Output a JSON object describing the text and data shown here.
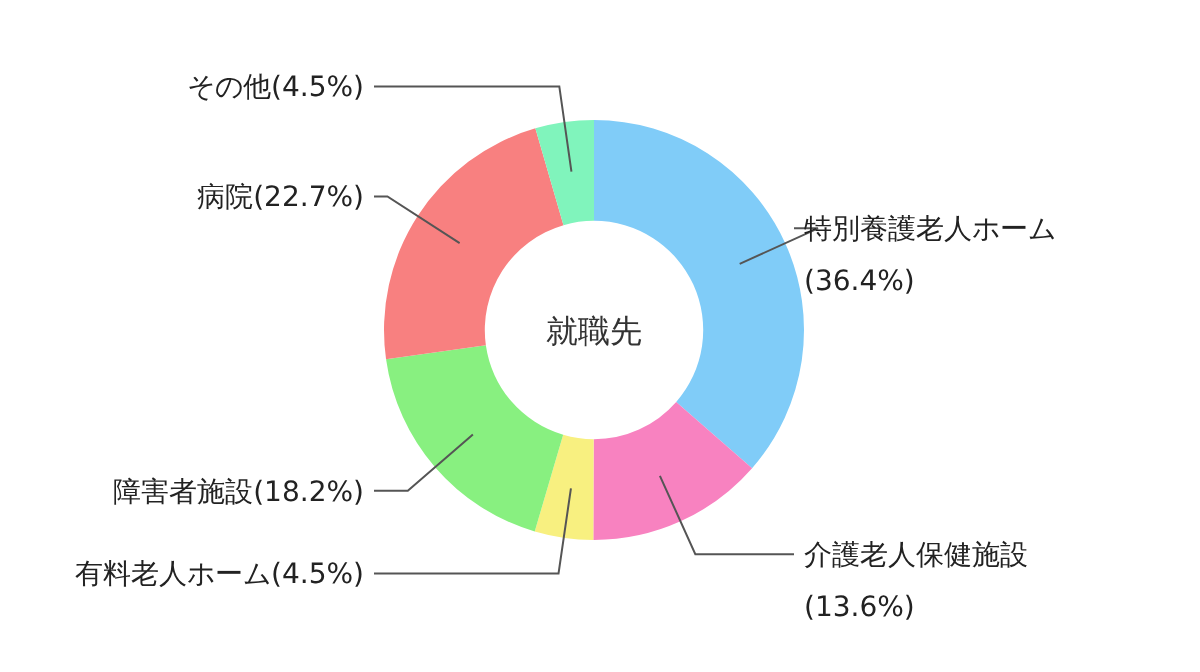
{
  "chart_data": {
    "type": "donut",
    "title": "就職先",
    "categories": [
      "特別養護老人ホーム",
      "介護老人保健施設",
      "有料老人ホーム",
      "障害者施設",
      "病院",
      "その他"
    ],
    "values": [
      36.4,
      13.6,
      4.5,
      18.2,
      22.7,
      4.5
    ],
    "value_labels": [
      "(36.4%)",
      "(13.6%)",
      "(4.5%)",
      "(18.2%)",
      "(22.7%)",
      "(4.5%)"
    ],
    "colors": [
      "#80ccf8",
      "#f882c0",
      "#f8f080",
      "#88f080",
      "#f88080",
      "#80f4bc"
    ],
    "legend": false
  }
}
